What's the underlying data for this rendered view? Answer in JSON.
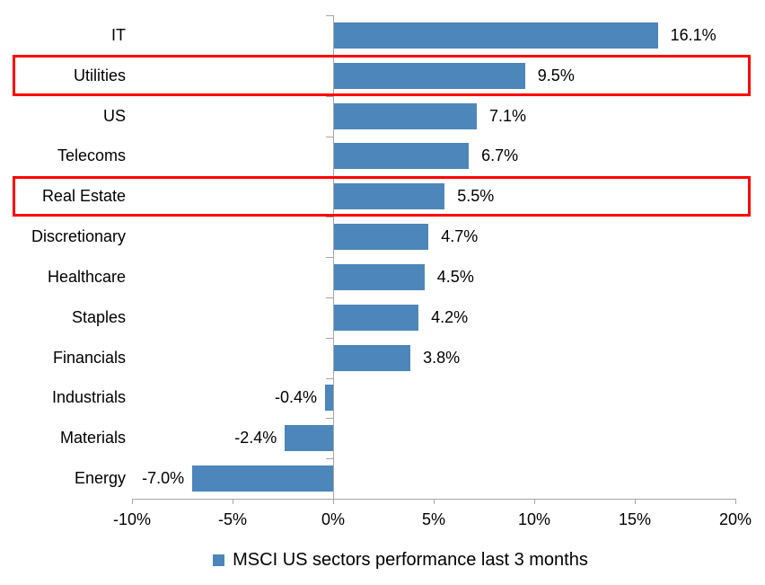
{
  "chart_data": {
    "type": "bar",
    "orientation": "horizontal",
    "title": "",
    "categories": [
      "IT",
      "Utilities",
      "US",
      "Telecoms",
      "Real Estate",
      "Discretionary",
      "Healthcare",
      "Staples",
      "Financials",
      "Industrials",
      "Materials",
      "Energy"
    ],
    "values": [
      16.1,
      9.5,
      7.1,
      6.7,
      5.5,
      4.7,
      4.5,
      4.2,
      3.8,
      -0.4,
      -2.4,
      -7.0
    ],
    "value_labels": [
      "16.1%",
      "9.5%",
      "7.1%",
      "6.7%",
      "5.5%",
      "4.7%",
      "4.5%",
      "4.2%",
      "3.8%",
      "-0.4%",
      "-2.4%",
      "-7.0%"
    ],
    "x_tick_values": [
      -10,
      -5,
      0,
      5,
      10,
      15,
      20
    ],
    "x_tick_labels": [
      "-10%",
      "-5%",
      "0%",
      "5%",
      "10%",
      "15%",
      "20%"
    ],
    "xlim": [
      -10,
      20
    ],
    "grid": false,
    "legend": "MSCI US sectors performance last 3 months",
    "legend_position": "bottom",
    "bar_color": "#4d86ba",
    "axis_color": "#a6a6a6",
    "highlight_color": "#ff0000",
    "highlighted_categories": [
      "Utilities",
      "Real Estate"
    ]
  }
}
